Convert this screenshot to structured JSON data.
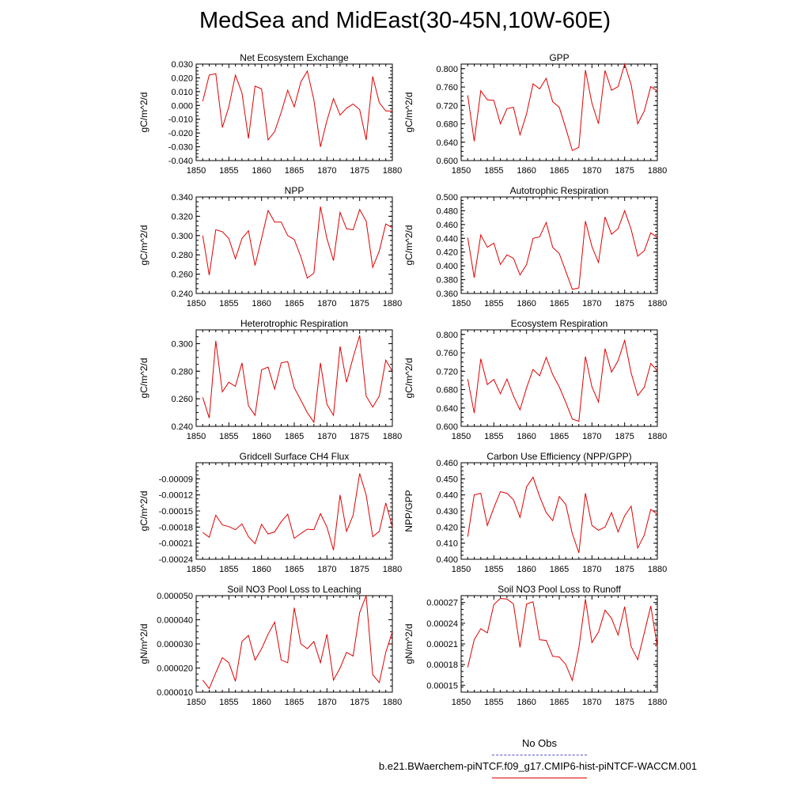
{
  "title": "MedSea and MidEast(30-45N,10W-60E)",
  "legend": {
    "obs_label": "No Obs",
    "obs_color": "#5555cc",
    "run_label": "b.e21.BWaerchem-piNTCF.f09_g17.CMIP6-hist-piNTCF-WACCM.001",
    "run_color": "#e00000"
  },
  "chart_data": [
    {
      "type": "line",
      "title": "Net Ecosystem Exchange",
      "ylabel": "gC/m^2/d",
      "xlim": [
        1850,
        1880
      ],
      "ylim": [
        -0.04,
        0.03
      ],
      "x_ticks": [
        "1850",
        "1855",
        "1860",
        "1865",
        "1870",
        "1875",
        "1880"
      ],
      "y_ticks": [
        "-0.040",
        "-0.030",
        "-0.020",
        "-0.010",
        "0.000",
        "0.010",
        "0.020",
        "0.030"
      ],
      "y_tick_values": [
        -0.04,
        -0.03,
        -0.02,
        -0.01,
        0.0,
        0.01,
        0.02,
        0.03
      ],
      "x": [
        1851,
        1852,
        1853,
        1854,
        1855,
        1856,
        1857,
        1858,
        1859,
        1860,
        1861,
        1862,
        1863,
        1864,
        1865,
        1866,
        1867,
        1868,
        1869,
        1870,
        1871,
        1872,
        1873,
        1874,
        1875,
        1876,
        1877,
        1878,
        1879,
        1880
      ],
      "values": [
        0.003,
        0.022,
        0.023,
        -0.016,
        -0.001,
        0.022,
        0.009,
        -0.024,
        0.014,
        0.012,
        -0.025,
        -0.019,
        -0.005,
        0.011,
        -0.001,
        0.017,
        0.025,
        0.004,
        -0.03,
        -0.011,
        0.005,
        -0.007,
        -0.002,
        0.001,
        -0.003,
        -0.025,
        0.021,
        0.002,
        -0.004,
        -0.004
      ]
    },
    {
      "type": "line",
      "title": "GPP",
      "ylabel": "gC/m^2/d",
      "xlim": [
        1850,
        1880
      ],
      "ylim": [
        0.6,
        0.81
      ],
      "x_ticks": [
        "1850",
        "1855",
        "1860",
        "1865",
        "1870",
        "1875",
        "1880"
      ],
      "y_ticks": [
        "0.600",
        "0.640",
        "0.680",
        "0.720",
        "0.760",
        "0.800"
      ],
      "y_tick_values": [
        0.6,
        0.64,
        0.68,
        0.72,
        0.76,
        0.8
      ],
      "x": [
        1851,
        1852,
        1853,
        1854,
        1855,
        1856,
        1857,
        1858,
        1859,
        1860,
        1861,
        1862,
        1863,
        1864,
        1865,
        1866,
        1867,
        1868,
        1869,
        1870,
        1871,
        1872,
        1873,
        1874,
        1875,
        1876,
        1877,
        1878,
        1879,
        1880
      ],
      "values": [
        0.742,
        0.642,
        0.752,
        0.732,
        0.731,
        0.68,
        0.713,
        0.716,
        0.656,
        0.702,
        0.767,
        0.756,
        0.779,
        0.728,
        0.716,
        0.67,
        0.622,
        0.629,
        0.797,
        0.725,
        0.68,
        0.796,
        0.753,
        0.761,
        0.81,
        0.765,
        0.68,
        0.708,
        0.761,
        0.751
      ]
    },
    {
      "type": "line",
      "title": "NPP",
      "ylabel": "gC/m^2/d",
      "xlim": [
        1850,
        1880
      ],
      "ylim": [
        0.24,
        0.34
      ],
      "x_ticks": [
        "1850",
        "1855",
        "1860",
        "1865",
        "1870",
        "1875",
        "1880"
      ],
      "y_ticks": [
        "0.240",
        "0.260",
        "0.280",
        "0.300",
        "0.320",
        "0.340"
      ],
      "y_tick_values": [
        0.24,
        0.26,
        0.28,
        0.3,
        0.32,
        0.34
      ],
      "x": [
        1851,
        1852,
        1853,
        1854,
        1855,
        1856,
        1857,
        1858,
        1859,
        1860,
        1861,
        1862,
        1863,
        1864,
        1865,
        1866,
        1867,
        1868,
        1869,
        1870,
        1871,
        1872,
        1873,
        1874,
        1875,
        1876,
        1877,
        1878,
        1879,
        1880
      ],
      "values": [
        0.3,
        0.259,
        0.306,
        0.304,
        0.297,
        0.276,
        0.297,
        0.305,
        0.269,
        0.297,
        0.326,
        0.314,
        0.314,
        0.3,
        0.296,
        0.278,
        0.256,
        0.261,
        0.33,
        0.297,
        0.274,
        0.324,
        0.307,
        0.306,
        0.327,
        0.315,
        0.267,
        0.284,
        0.312,
        0.308
      ]
    },
    {
      "type": "line",
      "title": "Autotrophic Respiration",
      "ylabel": "gC/m^2/d",
      "xlim": [
        1850,
        1880
      ],
      "ylim": [
        0.36,
        0.5
      ],
      "x_ticks": [
        "1850",
        "1855",
        "1860",
        "1865",
        "1870",
        "1875",
        "1880"
      ],
      "y_ticks": [
        "0.360",
        "0.380",
        "0.400",
        "0.420",
        "0.440",
        "0.460",
        "0.480",
        "0.500"
      ],
      "y_tick_values": [
        0.36,
        0.38,
        0.4,
        0.42,
        0.44,
        0.46,
        0.48,
        0.5
      ],
      "x": [
        1851,
        1852,
        1853,
        1854,
        1855,
        1856,
        1857,
        1858,
        1859,
        1860,
        1861,
        1862,
        1863,
        1864,
        1865,
        1866,
        1867,
        1868,
        1869,
        1870,
        1871,
        1872,
        1873,
        1874,
        1875,
        1876,
        1877,
        1878,
        1879,
        1880
      ],
      "values": [
        0.441,
        0.383,
        0.445,
        0.427,
        0.433,
        0.402,
        0.416,
        0.411,
        0.387,
        0.402,
        0.44,
        0.442,
        0.463,
        0.427,
        0.418,
        0.392,
        0.366,
        0.368,
        0.465,
        0.428,
        0.405,
        0.471,
        0.446,
        0.454,
        0.48,
        0.453,
        0.414,
        0.422,
        0.448,
        0.441
      ]
    },
    {
      "type": "line",
      "title": "Heterotrophic Respiration",
      "ylabel": "gC/m^2/d",
      "xlim": [
        1850,
        1880
      ],
      "ylim": [
        0.24,
        0.31
      ],
      "x_ticks": [
        "1850",
        "1855",
        "1860",
        "1865",
        "1870",
        "1875",
        "1880"
      ],
      "y_ticks": [
        "0.240",
        "0.260",
        "0.280",
        "0.300"
      ],
      "y_tick_values": [
        0.24,
        0.26,
        0.28,
        0.3
      ],
      "x": [
        1851,
        1852,
        1853,
        1854,
        1855,
        1856,
        1857,
        1858,
        1859,
        1860,
        1861,
        1862,
        1863,
        1864,
        1865,
        1866,
        1867,
        1868,
        1869,
        1870,
        1871,
        1872,
        1873,
        1874,
        1875,
        1876,
        1877,
        1878,
        1879,
        1880
      ],
      "values": [
        0.261,
        0.246,
        0.302,
        0.265,
        0.272,
        0.269,
        0.286,
        0.255,
        0.248,
        0.281,
        0.283,
        0.267,
        0.286,
        0.287,
        0.268,
        0.259,
        0.25,
        0.243,
        0.286,
        0.256,
        0.248,
        0.298,
        0.272,
        0.29,
        0.306,
        0.262,
        0.254,
        0.262,
        0.288,
        0.28
      ]
    },
    {
      "type": "line",
      "title": "Ecosystem Respiration",
      "ylabel": "gC/m^2/d",
      "xlim": [
        1850,
        1880
      ],
      "ylim": [
        0.6,
        0.81
      ],
      "x_ticks": [
        "1850",
        "1855",
        "1860",
        "1865",
        "1870",
        "1875",
        "1880"
      ],
      "y_ticks": [
        "0.600",
        "0.640",
        "0.680",
        "0.720",
        "0.760",
        "0.800"
      ],
      "y_tick_values": [
        0.6,
        0.64,
        0.68,
        0.72,
        0.76,
        0.8
      ],
      "x": [
        1851,
        1852,
        1853,
        1854,
        1855,
        1856,
        1857,
        1858,
        1859,
        1860,
        1861,
        1862,
        1863,
        1864,
        1865,
        1866,
        1867,
        1868,
        1869,
        1870,
        1871,
        1872,
        1873,
        1874,
        1875,
        1876,
        1877,
        1878,
        1879,
        1880
      ],
      "values": [
        0.703,
        0.629,
        0.747,
        0.691,
        0.702,
        0.671,
        0.703,
        0.666,
        0.636,
        0.684,
        0.724,
        0.71,
        0.75,
        0.713,
        0.686,
        0.652,
        0.616,
        0.611,
        0.752,
        0.686,
        0.653,
        0.769,
        0.718,
        0.743,
        0.787,
        0.716,
        0.667,
        0.685,
        0.737,
        0.721
      ]
    },
    {
      "type": "line",
      "title": "Gridcell Surface CH4 Flux",
      "ylabel": "gC/m^2/d",
      "xlim": [
        1850,
        1880
      ],
      "ylim": [
        -0.00024,
        -6e-05
      ],
      "x_ticks": [
        "1850",
        "1855",
        "1860",
        "1865",
        "1870",
        "1875",
        "1880"
      ],
      "y_ticks": [
        "-0.00024",
        "-0.00021",
        "-0.00018",
        "-0.00015",
        "-0.00012",
        "-0.00009"
      ],
      "y_tick_values": [
        -0.00024,
        -0.00021,
        -0.00018,
        -0.00015,
        -0.00012,
        -9e-05
      ],
      "x": [
        1851,
        1852,
        1853,
        1854,
        1855,
        1856,
        1857,
        1858,
        1859,
        1860,
        1861,
        1862,
        1863,
        1864,
        1865,
        1866,
        1867,
        1868,
        1869,
        1870,
        1871,
        1872,
        1873,
        1874,
        1875,
        1876,
        1877,
        1878,
        1879,
        1880
      ],
      "values": [
        -0.00019,
        -0.000199,
        -0.000158,
        -0.000176,
        -0.000179,
        -0.000185,
        -0.000174,
        -0.000198,
        -0.000211,
        -0.000175,
        -0.000193,
        -0.000189,
        -0.00017,
        -0.000156,
        -0.000201,
        -0.000192,
        -0.000184,
        -0.000185,
        -0.000155,
        -0.00018,
        -0.000223,
        -0.00012,
        -0.000188,
        -0.000158,
        -8e-05,
        -0.00012,
        -0.000198,
        -0.000188,
        -0.000135,
        -0.00018
      ]
    },
    {
      "type": "line",
      "title": "Carbon Use Efficiency (NPP/GPP)",
      "ylabel": "NPP/GPP",
      "xlim": [
        1850,
        1880
      ],
      "ylim": [
        0.4,
        0.46
      ],
      "x_ticks": [
        "1850",
        "1855",
        "1860",
        "1865",
        "1870",
        "1875",
        "1880"
      ],
      "y_ticks": [
        "0.400",
        "0.410",
        "0.420",
        "0.430",
        "0.440",
        "0.450",
        "0.460"
      ],
      "y_tick_values": [
        0.4,
        0.41,
        0.42,
        0.43,
        0.44,
        0.45,
        0.46
      ],
      "x": [
        1851,
        1852,
        1853,
        1854,
        1855,
        1856,
        1857,
        1858,
        1859,
        1860,
        1861,
        1862,
        1863,
        1864,
        1865,
        1866,
        1867,
        1868,
        1869,
        1870,
        1871,
        1872,
        1873,
        1874,
        1875,
        1876,
        1877,
        1878,
        1879,
        1880
      ],
      "values": [
        0.414,
        0.44,
        0.441,
        0.421,
        0.432,
        0.442,
        0.441,
        0.437,
        0.426,
        0.445,
        0.451,
        0.439,
        0.429,
        0.424,
        0.439,
        0.434,
        0.416,
        0.404,
        0.441,
        0.421,
        0.418,
        0.42,
        0.429,
        0.417,
        0.427,
        0.433,
        0.407,
        0.415,
        0.431,
        0.428
      ]
    },
    {
      "type": "line",
      "title": "Soil NO3 Pool Loss to Leaching",
      "ylabel": "gN/m^2/d",
      "xlim": [
        1850,
        1880
      ],
      "ylim": [
        1e-05,
        5e-05
      ],
      "x_ticks": [
        "1850",
        "1855",
        "1860",
        "1865",
        "1870",
        "1875",
        "1880"
      ],
      "y_ticks": [
        "0.000010",
        "0.000020",
        "0.000030",
        "0.000040",
        "0.000050"
      ],
      "y_tick_values": [
        1e-05,
        2e-05,
        3e-05,
        4e-05,
        5e-05
      ],
      "x": [
        1851,
        1852,
        1853,
        1854,
        1855,
        1856,
        1857,
        1858,
        1859,
        1860,
        1861,
        1862,
        1863,
        1864,
        1865,
        1866,
        1867,
        1868,
        1869,
        1870,
        1871,
        1872,
        1873,
        1874,
        1875,
        1876,
        1877,
        1878,
        1879,
        1880
      ],
      "values": [
        1.5e-05,
        1.15e-05,
        1.8e-05,
        2.43e-05,
        2.22e-05,
        1.45e-05,
        3.1e-05,
        3.35e-05,
        2.33e-05,
        2.8e-05,
        3.4e-05,
        3.9e-05,
        2.33e-05,
        2.22e-05,
        4.5e-05,
        3e-05,
        2.8e-05,
        3.1e-05,
        2.22e-05,
        3.4e-05,
        1.5e-05,
        2e-05,
        2.65e-05,
        2.5e-05,
        4.3e-05,
        5e-05,
        1.72e-05,
        1.4e-05,
        2.65e-05,
        3.5e-05
      ]
    },
    {
      "type": "line",
      "title": "Soil NO3 Pool Loss to Runoff",
      "ylabel": "gN/m^2/d",
      "xlim": [
        1850,
        1880
      ],
      "ylim": [
        0.00014,
        0.00028
      ],
      "x_ticks": [
        "1850",
        "1855",
        "1860",
        "1865",
        "1870",
        "1875",
        "1880"
      ],
      "y_ticks": [
        "0.00015",
        "0.00018",
        "0.00021",
        "0.00024",
        "0.00027"
      ],
      "y_tick_values": [
        0.00015,
        0.00018,
        0.00021,
        0.00024,
        0.00027
      ],
      "x": [
        1851,
        1852,
        1853,
        1854,
        1855,
        1856,
        1857,
        1858,
        1859,
        1860,
        1861,
        1862,
        1863,
        1864,
        1865,
        1866,
        1867,
        1868,
        1869,
        1870,
        1871,
        1872,
        1873,
        1874,
        1875,
        1876,
        1877,
        1878,
        1879,
        1880
      ],
      "values": [
        0.000176,
        0.000216,
        0.000232,
        0.000226,
        0.000267,
        0.000276,
        0.000275,
        0.000268,
        0.000205,
        0.000268,
        0.000271,
        0.000216,
        0.000215,
        0.000192,
        0.000191,
        0.00018,
        0.000157,
        0.000204,
        0.000275,
        0.000212,
        0.000227,
        0.000259,
        0.000247,
        0.000223,
        0.000264,
        0.000206,
        0.000187,
        0.000226,
        0.000265,
        0.000206
      ]
    }
  ]
}
